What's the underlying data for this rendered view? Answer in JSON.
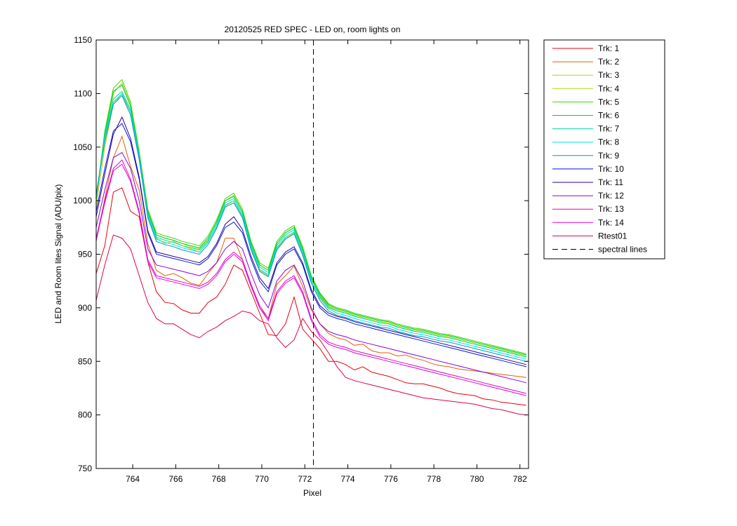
{
  "chart_data": {
    "type": "line",
    "title": "20120525 RED SPEC - LED on, room lights on",
    "xlabel": "Pixel",
    "ylabel": "LED and Room lites Signal (ADU/pix)",
    "xlim": [
      762.3,
      782.4
    ],
    "ylim": [
      750,
      1150
    ],
    "xticks": [
      764,
      766,
      768,
      770,
      772,
      774,
      776,
      778,
      780,
      782
    ],
    "yticks": [
      750,
      800,
      850,
      900,
      950,
      1000,
      1050,
      1100,
      1150
    ],
    "grid": false,
    "legend_position": "outside-right",
    "x": [
      762.3,
      762.7,
      763.1,
      763.5,
      763.9,
      764.3,
      764.7,
      765.1,
      765.5,
      765.9,
      766.3,
      766.7,
      767.1,
      767.5,
      767.9,
      768.3,
      768.7,
      769.1,
      769.5,
      769.9,
      770.3,
      770.7,
      771.1,
      771.5,
      771.9,
      772.3,
      772.7,
      773.1,
      773.5,
      773.9,
      774.3,
      774.7,
      775.1,
      775.5,
      775.9,
      776.3,
      776.7,
      777.1,
      777.5,
      777.9,
      778.3,
      778.7,
      779.1,
      779.5,
      779.9,
      780.3,
      780.7,
      781.1,
      781.5,
      781.9,
      782.3
    ],
    "series": [
      {
        "name": "Trk: 1",
        "color": "#e8000b",
        "values": [
          932,
          958,
          1008,
          1012,
          990,
          985,
          943,
          915,
          905,
          904,
          898,
          895,
          895,
          905,
          910,
          922,
          940,
          935,
          915,
          895,
          875,
          874,
          885,
          910,
          880,
          871,
          862,
          850,
          850,
          847,
          842,
          845,
          840,
          838,
          836,
          833,
          830,
          829,
          829,
          827,
          825,
          822,
          820,
          819,
          818,
          815,
          814,
          812,
          811,
          810,
          809
        ]
      },
      {
        "name": "Trk: 2",
        "color": "#e06000",
        "values": [
          962,
          1002,
          1040,
          1060,
          1032,
          1010,
          960,
          935,
          930,
          932,
          928,
          923,
          921,
          932,
          942,
          965,
          965,
          945,
          920,
          900,
          890,
          922,
          930,
          939,
          920,
          898,
          885,
          876,
          872,
          870,
          865,
          866,
          860,
          858,
          858,
          855,
          856,
          853,
          851,
          848,
          846,
          845,
          843,
          842,
          841,
          840,
          839,
          838,
          837,
          836,
          835
        ]
      },
      {
        "name": "Trk: 3",
        "color": "#c8c800",
        "values": [
          995,
          1050,
          1090,
          1100,
          1080,
          1040,
          985,
          965,
          960,
          962,
          958,
          955,
          952,
          962,
          975,
          995,
          1000,
          985,
          955,
          935,
          930,
          955,
          965,
          970,
          950,
          925,
          910,
          900,
          897,
          895,
          892,
          890,
          888,
          886,
          885,
          882,
          880,
          878,
          877,
          875,
          873,
          872,
          870,
          868,
          866,
          864,
          862,
          860,
          858,
          856,
          854
        ]
      },
      {
        "name": "Trk: 4",
        "color": "#a8e000",
        "values": [
          1000,
          1060,
          1100,
          1110,
          1090,
          1045,
          990,
          968,
          965,
          963,
          960,
          957,
          955,
          965,
          980,
          1000,
          1005,
          990,
          960,
          940,
          935,
          960,
          970,
          975,
          955,
          928,
          912,
          902,
          898,
          896,
          893,
          891,
          889,
          887,
          886,
          883,
          881,
          879,
          878,
          876,
          874,
          873,
          871,
          869,
          867,
          865,
          863,
          861,
          859,
          857,
          855
        ]
      },
      {
        "name": "Trk: 5",
        "color": "#40d800",
        "values": [
          1002,
          1065,
          1105,
          1113,
          1092,
          1046,
          992,
          970,
          967,
          965,
          962,
          960,
          958,
          967,
          982,
          1002,
          1007,
          992,
          962,
          942,
          937,
          962,
          972,
          977,
          957,
          930,
          914,
          904,
          900,
          898,
          895,
          893,
          891,
          889,
          888,
          885,
          883,
          881,
          880,
          878,
          876,
          875,
          873,
          871,
          869,
          867,
          865,
          863,
          861,
          859,
          857
        ]
      },
      {
        "name": "Trk: 6",
        "color": "#00cc33",
        "values": [
          1001,
          1062,
          1102,
          1108,
          1088,
          1044,
          990,
          968,
          965,
          963,
          960,
          958,
          956,
          965,
          980,
          1000,
          1004,
          990,
          960,
          940,
          935,
          960,
          970,
          975,
          955,
          929,
          913,
          903,
          899,
          897,
          894,
          892,
          890,
          888,
          887,
          884,
          882,
          880,
          879,
          877,
          875,
          874,
          872,
          870,
          868,
          866,
          864,
          862,
          860,
          858,
          856
        ]
      },
      {
        "name": "Trk: 7",
        "color": "#00d8a8",
        "values": [
          1004,
          1060,
          1095,
          1102,
          1085,
          1042,
          988,
          966,
          963,
          961,
          958,
          956,
          954,
          963,
          978,
          998,
          1002,
          988,
          958,
          938,
          933,
          958,
          968,
          973,
          953,
          927,
          911,
          901,
          897,
          895,
          892,
          890,
          888,
          886,
          885,
          882,
          880,
          878,
          877,
          875,
          873,
          872,
          870,
          868,
          866,
          864,
          862,
          860,
          858,
          856,
          854
        ]
      },
      {
        "name": "Trk: 8",
        "color": "#00e0d8",
        "values": [
          1006,
          1058,
          1092,
          1100,
          1083,
          1040,
          986,
          964,
          961,
          959,
          956,
          954,
          952,
          961,
          976,
          996,
          1000,
          986,
          956,
          936,
          931,
          956,
          966,
          971,
          951,
          925,
          909,
          899,
          895,
          893,
          890,
          888,
          886,
          884,
          883,
          880,
          878,
          876,
          875,
          873,
          871,
          870,
          868,
          866,
          864,
          862,
          860,
          858,
          856,
          854,
          852
        ]
      },
      {
        "name": "Trk: 9",
        "color": "#0098c8",
        "values": [
          1005,
          1055,
          1090,
          1098,
          1080,
          1038,
          984,
          962,
          959,
          957,
          954,
          952,
          950,
          959,
          974,
          994,
          998,
          984,
          954,
          934,
          929,
          954,
          964,
          969,
          949,
          923,
          907,
          897,
          893,
          891,
          888,
          886,
          884,
          882,
          881,
          878,
          876,
          874,
          873,
          871,
          869,
          868,
          866,
          864,
          862,
          860,
          858,
          856,
          854,
          852,
          850
        ]
      },
      {
        "name": "Trk: 10",
        "color": "#0018e0",
        "values": [
          990,
          1030,
          1065,
          1072,
          1055,
          1020,
          970,
          950,
          948,
          946,
          944,
          942,
          940,
          946,
          958,
          975,
          980,
          970,
          945,
          925,
          915,
          940,
          950,
          955,
          940,
          915,
          900,
          893,
          890,
          888,
          885,
          883,
          881,
          879,
          877,
          875,
          873,
          871,
          869,
          867,
          865,
          863,
          861,
          859,
          857,
          855,
          853,
          851,
          849,
          847,
          845
        ]
      },
      {
        "name": "Trk: 11",
        "color": "#2a0090",
        "values": [
          985,
          1025,
          1062,
          1078,
          1058,
          1022,
          972,
          952,
          950,
          948,
          946,
          944,
          942,
          948,
          960,
          978,
          985,
          973,
          948,
          928,
          918,
          942,
          952,
          957,
          942,
          917,
          902,
          895,
          892,
          890,
          887,
          885,
          883,
          881,
          879,
          877,
          875,
          873,
          871,
          869,
          867,
          865,
          863,
          861,
          859,
          857,
          855,
          853,
          851,
          849,
          847
        ]
      },
      {
        "name": "Trk: 12",
        "color": "#8c00e0",
        "values": [
          975,
          1010,
          1040,
          1045,
          1030,
          1000,
          955,
          940,
          938,
          936,
          934,
          932,
          930,
          934,
          942,
          955,
          962,
          955,
          932,
          912,
          900,
          925,
          935,
          940,
          925,
          900,
          885,
          878,
          875,
          873,
          870,
          868,
          866,
          864,
          862,
          860,
          858,
          856,
          854,
          852,
          850,
          848,
          846,
          844,
          842,
          840,
          838,
          836,
          834,
          832,
          830
        ]
      },
      {
        "name": "Trk: 13",
        "color": "#e000c0",
        "values": [
          965,
          1000,
          1030,
          1038,
          1020,
          990,
          945,
          930,
          928,
          926,
          924,
          922,
          920,
          924,
          932,
          945,
          952,
          945,
          922,
          902,
          890,
          915,
          925,
          930,
          915,
          890,
          875,
          868,
          865,
          863,
          860,
          858,
          856,
          854,
          852,
          850,
          848,
          846,
          844,
          842,
          840,
          838,
          836,
          834,
          832,
          830,
          828,
          826,
          824,
          822,
          820
        ]
      },
      {
        "name": "Trk: 14",
        "color": "#e000e0",
        "values": [
          963,
          998,
          1028,
          1034,
          1018,
          988,
          943,
          928,
          926,
          924,
          922,
          920,
          918,
          922,
          930,
          943,
          950,
          943,
          920,
          900,
          888,
          913,
          923,
          928,
          913,
          888,
          873,
          866,
          863,
          861,
          858,
          856,
          854,
          852,
          850,
          848,
          846,
          844,
          842,
          840,
          838,
          836,
          834,
          832,
          830,
          828,
          826,
          824,
          822,
          820,
          818
        ]
      },
      {
        "name": "Rtest01",
        "color": "#e00050",
        "values": [
          907,
          940,
          968,
          965,
          955,
          930,
          905,
          890,
          885,
          885,
          880,
          875,
          872,
          878,
          882,
          888,
          892,
          897,
          895,
          888,
          885,
          872,
          863,
          870,
          890,
          878,
          870,
          858,
          845,
          835,
          832,
          830,
          828,
          826,
          824,
          822,
          820,
          818,
          816,
          815,
          814,
          813,
          812,
          811,
          810,
          808,
          806,
          805,
          803,
          801,
          800
        ]
      }
    ],
    "reference_lines": [
      {
        "name": "spectral lines",
        "x": 772.4,
        "style": "dashed",
        "color": "#000000"
      }
    ]
  }
}
